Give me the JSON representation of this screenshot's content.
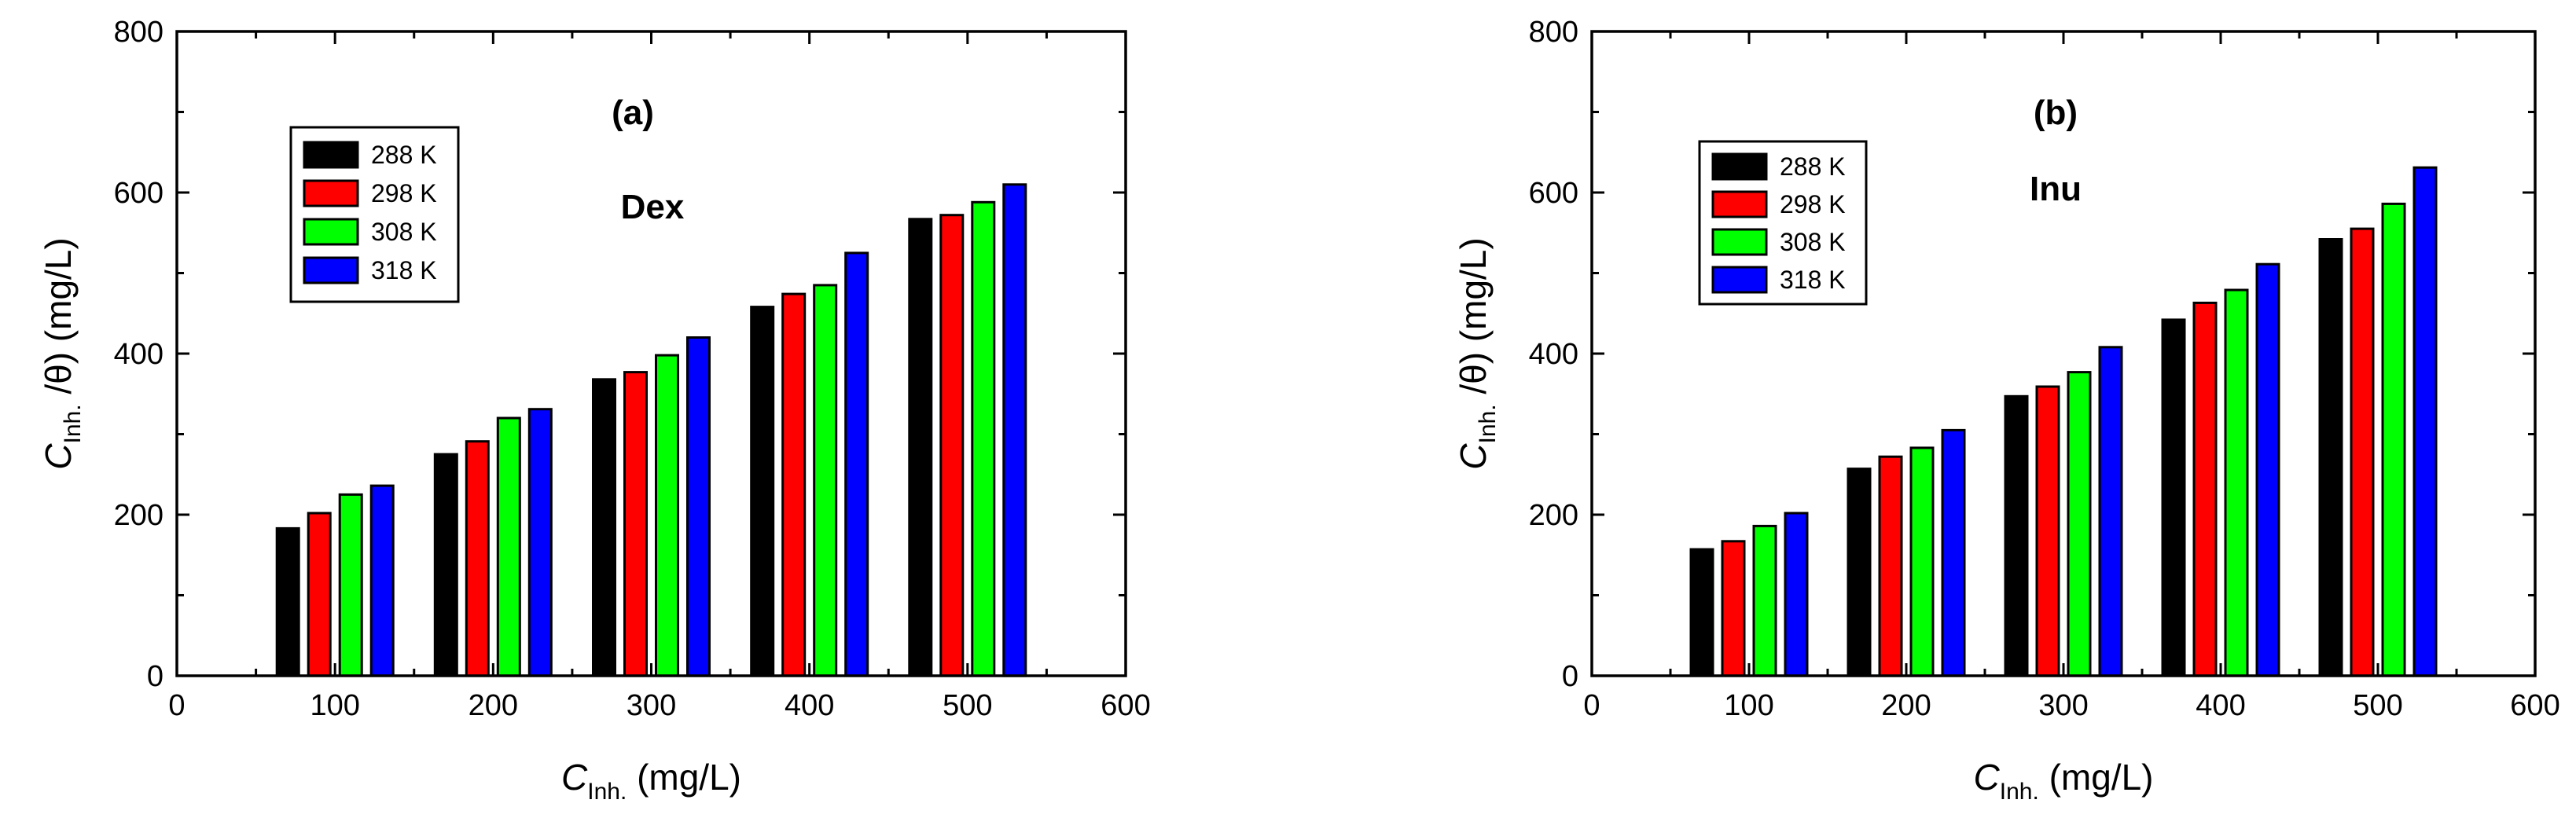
{
  "chart_data": [
    {
      "type": "bar",
      "panel_label": "(a)",
      "annotation": "Dex",
      "x": [
        100,
        200,
        300,
        400,
        500
      ],
      "xlim": [
        0,
        600
      ],
      "ylim": [
        0,
        800
      ],
      "xticks": [
        "0",
        "100",
        "200",
        "300",
        "400",
        "500",
        "600"
      ],
      "yticks": [
        "0",
        "200",
        "400",
        "600",
        "800"
      ],
      "xlabel": {
        "symbol": "C",
        "subscript": "Inh.",
        "rest": " (mg/L)"
      },
      "ylabel": {
        "symbol": "C",
        "subscript": "Inh.",
        "rest": " /θ) (mg/L)"
      },
      "legend_position": "upper-left",
      "series": [
        {
          "name": "288 K",
          "color": "#000000",
          "values": [
            183,
            275,
            368,
            458,
            567
          ]
        },
        {
          "name": "298 K",
          "color": "#ff0000",
          "values": [
            202,
            291,
            377,
            474,
            572
          ]
        },
        {
          "name": "308 K",
          "color": "#00ff00",
          "values": [
            225,
            320,
            398,
            485,
            588
          ]
        },
        {
          "name": "318 K",
          "color": "#0000ff",
          "values": [
            236,
            331,
            420,
            525,
            610
          ]
        }
      ]
    },
    {
      "type": "bar",
      "panel_label": "(b)",
      "annotation": "Inu",
      "x": [
        100,
        200,
        300,
        400,
        500
      ],
      "xlim": [
        0,
        600
      ],
      "ylim": [
        0,
        800
      ],
      "xticks": [
        "0",
        "100",
        "200",
        "300",
        "400",
        "500",
        "600"
      ],
      "yticks": [
        "0",
        "200",
        "400",
        "600",
        "800"
      ],
      "xlabel": {
        "symbol": "C",
        "subscript": "Inh.",
        "rest": " (mg/L)"
      },
      "ylabel": {
        "symbol": "C",
        "subscript": "Inh.",
        "rest": " /θ) (mg/L)"
      },
      "legend_position": "upper-left",
      "series": [
        {
          "name": "288 K",
          "color": "#000000",
          "values": [
            157,
            257,
            347,
            442,
            542
          ]
        },
        {
          "name": "298 K",
          "color": "#ff0000",
          "values": [
            167,
            272,
            359,
            463,
            555
          ]
        },
        {
          "name": "308 K",
          "color": "#00ff00",
          "values": [
            186,
            283,
            377,
            479,
            586
          ]
        },
        {
          "name": "318 K",
          "color": "#0000ff",
          "values": [
            202,
            305,
            408,
            511,
            631
          ]
        }
      ]
    }
  ]
}
